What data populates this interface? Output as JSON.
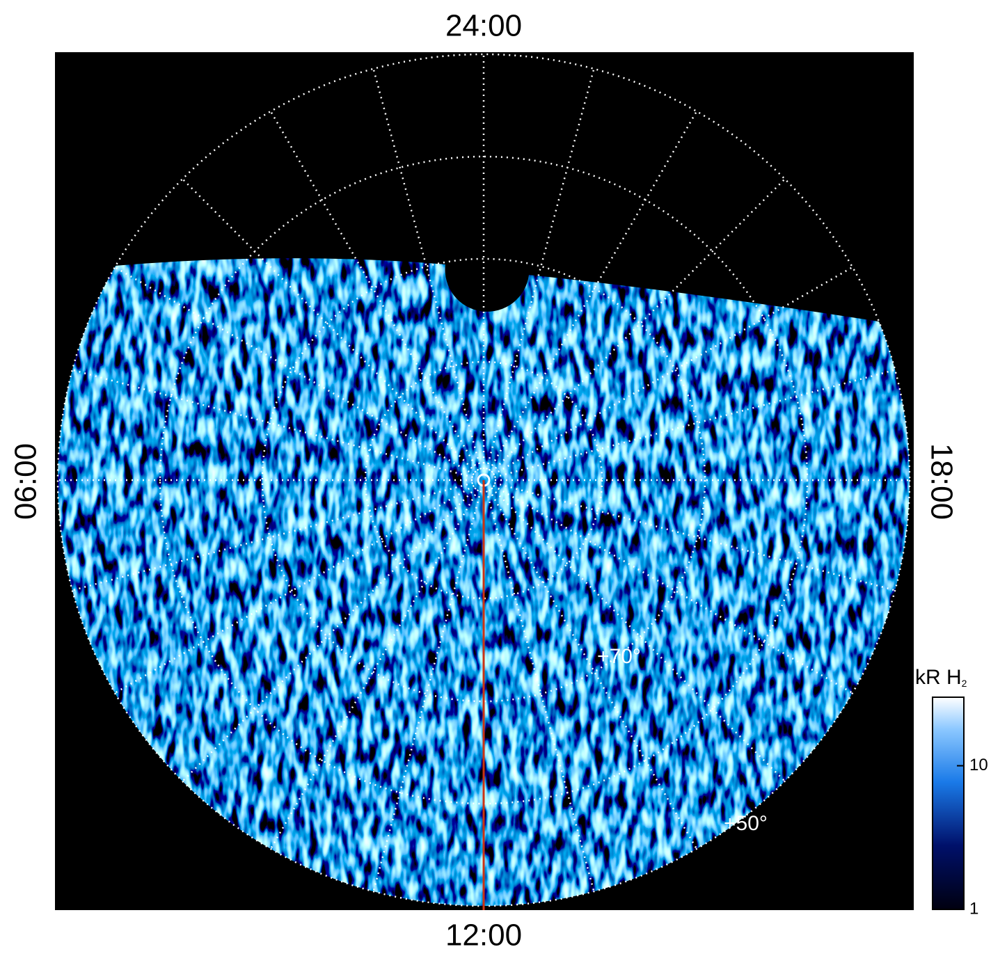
{
  "labels": {
    "top": "24:00",
    "left": "06:00",
    "bottom": "12:00",
    "right": "18:00"
  },
  "latitude_labels": [
    "+70°",
    "+50°"
  ],
  "colorbar": {
    "title": "kR H",
    "title_subscript": "2",
    "scale": "log",
    "lim": [
      1,
      30
    ],
    "ticks": [
      1,
      10
    ]
  }
}
